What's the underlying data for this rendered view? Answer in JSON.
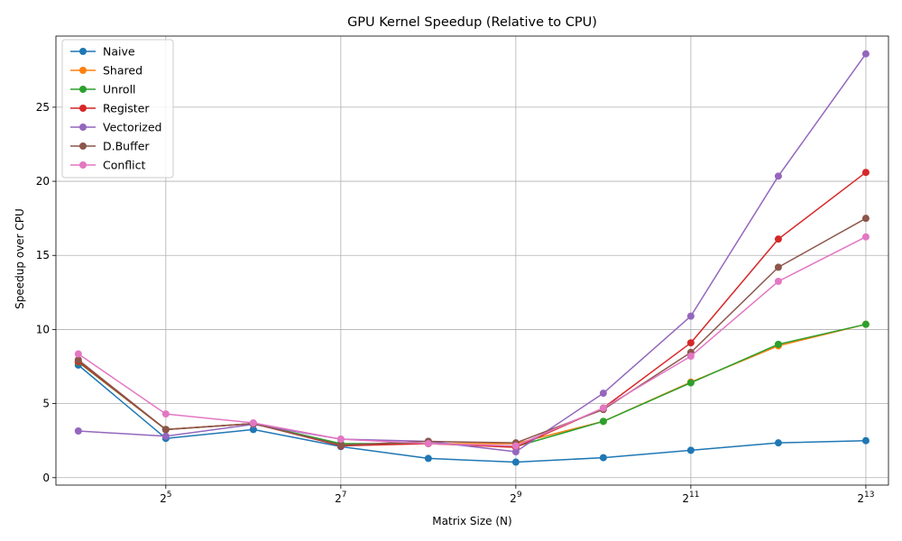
{
  "chart_data": {
    "type": "line",
    "title": "GPU Kernel Speedup (Relative to CPU)",
    "xlabel": "Matrix Size (N)",
    "ylabel": "Speedup over CPU",
    "x_scale": "log2",
    "x": [
      16,
      32,
      64,
      128,
      256,
      512,
      1024,
      2048,
      4096,
      8192
    ],
    "x_ticks": [
      {
        "value": 32,
        "base": "2",
        "exp": "5"
      },
      {
        "value": 128,
        "base": "2",
        "exp": "7"
      },
      {
        "value": 512,
        "base": "2",
        "exp": "9"
      },
      {
        "value": 2048,
        "base": "2",
        "exp": "11"
      },
      {
        "value": 8192,
        "base": "2",
        "exp": "13"
      }
    ],
    "xlim": [
      13.4,
      9800
    ],
    "ylim": [
      -0.5,
      29.8
    ],
    "y_ticks": [
      {
        "value": 0,
        "label": "0"
      },
      {
        "value": 5,
        "label": "5"
      },
      {
        "value": 10,
        "label": "10"
      },
      {
        "value": 15,
        "label": "15"
      },
      {
        "value": 20,
        "label": "20"
      },
      {
        "value": 25,
        "label": "25"
      }
    ],
    "grid": true,
    "legend_position": "top-left",
    "series": [
      {
        "name": "Naive",
        "color": "#1f77b4",
        "values": [
          7.6,
          2.65,
          3.25,
          2.1,
          1.3,
          1.05,
          1.35,
          1.85,
          2.35,
          2.5
        ]
      },
      {
        "name": "Shared",
        "color": "#ff7f0e",
        "values": [
          7.8,
          3.25,
          3.65,
          2.25,
          2.3,
          2.3,
          3.8,
          6.45,
          8.9,
          10.35
        ]
      },
      {
        "name": "Unroll",
        "color": "#2ca02c",
        "values": [
          7.8,
          3.25,
          3.65,
          2.3,
          2.3,
          2.1,
          3.8,
          6.4,
          9.0,
          10.35
        ]
      },
      {
        "name": "Register",
        "color": "#d62728",
        "values": [
          7.85,
          3.25,
          3.65,
          2.15,
          2.3,
          2.05,
          4.7,
          9.1,
          16.1,
          20.6
        ]
      },
      {
        "name": "Vectorized",
        "color": "#9467bd",
        "values": [
          3.15,
          2.8,
          3.6,
          2.6,
          2.45,
          1.75,
          5.7,
          10.9,
          20.35,
          28.6
        ]
      },
      {
        "name": "D.Buffer",
        "color": "#8c564b",
        "values": [
          7.95,
          3.25,
          3.65,
          2.2,
          2.45,
          2.35,
          4.6,
          8.45,
          14.2,
          17.5
        ]
      },
      {
        "name": "Conflict",
        "color": "#e377c2",
        "values": [
          8.35,
          4.3,
          3.7,
          2.6,
          2.3,
          2.15,
          4.7,
          8.2,
          13.25,
          16.25
        ]
      }
    ]
  }
}
